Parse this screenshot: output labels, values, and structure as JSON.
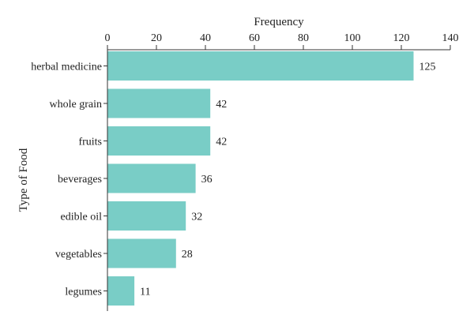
{
  "chart_data": {
    "type": "bar",
    "orientation": "horizontal",
    "xlabel": "Frequency",
    "ylabel": "Type of Food",
    "xlim": [
      0,
      140
    ],
    "x_ticks": [
      0,
      20,
      40,
      60,
      80,
      100,
      120,
      140
    ],
    "x_axis_position": "top",
    "grid": false,
    "legend": "none",
    "bar_color": "#79cdc6",
    "categories": [
      "herbal medicine",
      "whole grain",
      "fruits",
      "beverages",
      "edible oil",
      "vegetables",
      "legumes"
    ],
    "values": [
      125,
      42,
      42,
      36,
      32,
      28,
      11
    ],
    "data_labels": [
      "125",
      "42",
      "42",
      "36",
      "32",
      "28",
      "11"
    ]
  }
}
